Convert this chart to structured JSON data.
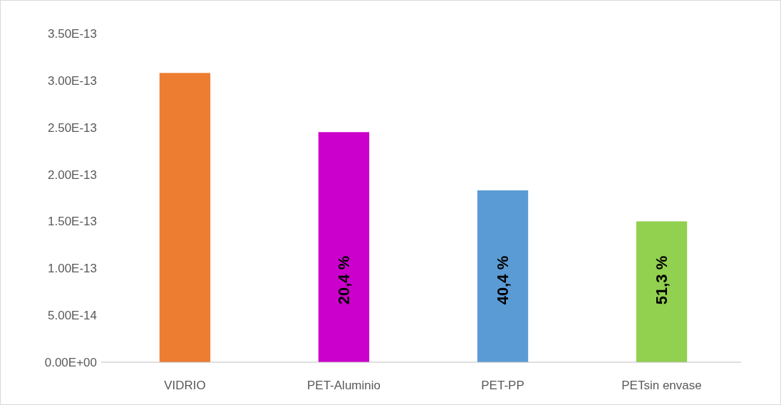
{
  "chart_data": {
    "type": "bar",
    "categories": [
      "VIDRIO",
      "PET-Aluminio",
      "PET-PP",
      "PETsin envase"
    ],
    "values": [
      3.08e-13,
      2.45e-13,
      1.83e-13,
      1.5e-13
    ],
    "colors": [
      "#ed7d31",
      "#cc00cc",
      "#5b9bd5",
      "#92d050"
    ],
    "ylim": [
      0,
      3.5e-13
    ],
    "yticks": [
      {
        "value": 0,
        "label": "0.00E+00"
      },
      {
        "value": 5e-14,
        "label": "5.00E-14"
      },
      {
        "value": 1e-13,
        "label": "1.00E-13"
      },
      {
        "value": 1.5e-13,
        "label": "1.50E-13"
      },
      {
        "value": 2e-13,
        "label": "2.00E-13"
      },
      {
        "value": 2.5e-13,
        "label": "2.50E-13"
      },
      {
        "value": 3e-13,
        "label": "3.00E-13"
      },
      {
        "value": 3.5e-13,
        "label": "3.50E-13"
      }
    ],
    "grid": false,
    "annotations": [
      "20,4 %",
      "40,4 %",
      "51,3 %"
    ]
  }
}
